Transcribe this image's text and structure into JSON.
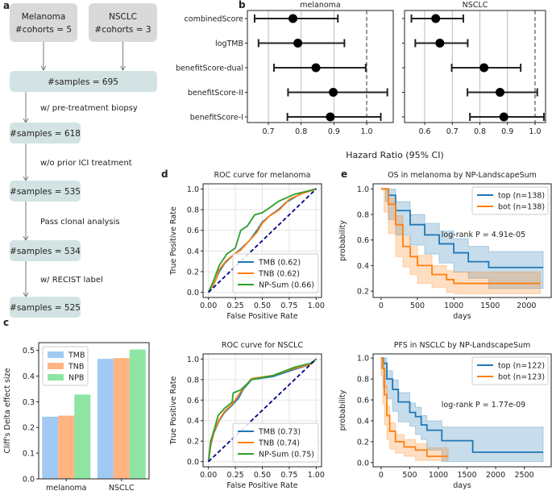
{
  "panel_labels": {
    "a": "a",
    "b": "b",
    "c": "c",
    "d": "d",
    "e": "e"
  },
  "flowchart": {
    "cohorts": [
      {
        "name": "Melanoma",
        "count": "#cohorts = 5"
      },
      {
        "name": "NSCLC",
        "count": "#cohorts = 3"
      }
    ],
    "steps": [
      "#samples = 695",
      "#samples = 618",
      "#samples = 535",
      "#samples = 534",
      "#samples = 525"
    ],
    "filters": [
      "w/ pre-treatment biopsy",
      "w/o prior ICI treatment",
      "Pass clonal analysis",
      "w/ RECIST label"
    ],
    "colors": {
      "cohort_box": "#d9d9d9",
      "step_box": "#d3e3e3"
    }
  },
  "forest_shared_xlabel": "Hazard Ratio (95% CI)",
  "chart_data": [
    {
      "id": "c",
      "type": "bar",
      "categories": [
        "melanoma",
        "NSCLC"
      ],
      "series": [
        {
          "name": "TMB",
          "values": [
            0.242,
            0.467
          ],
          "color": "#a1c9f4"
        },
        {
          "name": "TNB",
          "values": [
            0.246,
            0.47
          ],
          "color": "#ffb482"
        },
        {
          "name": "NPB",
          "values": [
            0.328,
            0.503
          ],
          "color": "#8de5a1"
        }
      ],
      "ylabel": "Cliff's Delta effect size",
      "ylim": [
        0,
        0.53
      ],
      "yticks": [
        "0.0",
        "0.1",
        "0.2",
        "0.3",
        "0.4",
        "0.5"
      ],
      "legend": "top-left"
    },
    {
      "id": "b-melanoma",
      "type": "forest",
      "title": "melanoma",
      "categories": [
        "combinedScore",
        "logTMB",
        "benefitScore-dual",
        "benefitScore-II",
        "benefitScore-I"
      ],
      "hr": [
        0.775,
        0.79,
        0.845,
        0.898,
        0.889
      ],
      "ci_low": [
        0.658,
        0.67,
        0.717,
        0.76,
        0.758
      ],
      "ci_high": [
        0.912,
        0.932,
        0.997,
        1.063,
        1.043
      ],
      "xlim": [
        0.636,
        1.081
      ],
      "xticks": [
        "0.7",
        "0.8",
        "0.9",
        "1.0"
      ],
      "reference_line": 1.0,
      "grid": true
    },
    {
      "id": "b-nsclc",
      "type": "forest",
      "title": "NSCLC",
      "categories": [
        "combinedScore",
        "logTMB",
        "benefitScore-dual",
        "benefitScore-II",
        "benefitScore-I"
      ],
      "hr": [
        0.64,
        0.655,
        0.815,
        0.873,
        0.887
      ],
      "ci_low": [
        0.552,
        0.566,
        0.698,
        0.755,
        0.764
      ],
      "ci_high": [
        0.74,
        0.756,
        0.948,
        1.008,
        1.032
      ],
      "xlim": [
        0.527,
        1.038
      ],
      "xticks": [
        "0.6",
        "0.7",
        "0.8",
        "0.9",
        "1.0"
      ],
      "reference_line": 1.0,
      "grid": true
    },
    {
      "id": "d-melanoma",
      "type": "line",
      "title": "ROC curve for melanoma",
      "xlabel": "False Positive Rate",
      "ylabel": "True Positive Rate",
      "xlim": [
        -0.05,
        1.05
      ],
      "ylim": [
        -0.05,
        1.05
      ],
      "xticks": [
        "0.00",
        "0.25",
        "0.50",
        "0.75",
        "1.00"
      ],
      "yticks": [
        "0.0",
        "0.2",
        "0.4",
        "0.6",
        "0.8",
        "1.0"
      ],
      "grid": true,
      "legend": "bottom-right",
      "series": [
        {
          "name": "TMB (0.62)",
          "color": "#1f77b4",
          "points": [
            [
              0,
              0
            ],
            [
              0.05,
              0.08
            ],
            [
              0.1,
              0.2
            ],
            [
              0.15,
              0.28
            ],
            [
              0.22,
              0.35
            ],
            [
              0.3,
              0.42
            ],
            [
              0.38,
              0.5
            ],
            [
              0.45,
              0.6
            ],
            [
              0.5,
              0.68
            ],
            [
              0.58,
              0.75
            ],
            [
              0.65,
              0.8
            ],
            [
              0.72,
              0.87
            ],
            [
              0.85,
              0.95
            ],
            [
              1,
              1
            ]
          ]
        },
        {
          "name": "TNB (0.62)",
          "color": "#ff7f0e",
          "points": [
            [
              0,
              0
            ],
            [
              0.06,
              0.1
            ],
            [
              0.1,
              0.22
            ],
            [
              0.16,
              0.3
            ],
            [
              0.24,
              0.37
            ],
            [
              0.3,
              0.41
            ],
            [
              0.37,
              0.49
            ],
            [
              0.45,
              0.58
            ],
            [
              0.5,
              0.67
            ],
            [
              0.57,
              0.74
            ],
            [
              0.66,
              0.8
            ],
            [
              0.75,
              0.9
            ],
            [
              0.88,
              0.96
            ],
            [
              1,
              1
            ]
          ]
        },
        {
          "name": "NP-Sum (0.66)",
          "color": "#2ca02c",
          "points": [
            [
              0,
              0
            ],
            [
              0.05,
              0.12
            ],
            [
              0.1,
              0.26
            ],
            [
              0.17,
              0.37
            ],
            [
              0.25,
              0.43
            ],
            [
              0.3,
              0.6
            ],
            [
              0.36,
              0.64
            ],
            [
              0.43,
              0.75
            ],
            [
              0.5,
              0.77
            ],
            [
              0.57,
              0.82
            ],
            [
              0.65,
              0.88
            ],
            [
              0.8,
              0.95
            ],
            [
              1,
              1
            ]
          ]
        }
      ],
      "reference": {
        "points": [
          [
            0,
            0
          ],
          [
            1,
            1
          ]
        ],
        "color": "#00008b",
        "style": "dashed"
      }
    },
    {
      "id": "d-nsclc",
      "type": "line",
      "title": "ROC curve for NSCLC",
      "xlabel": "False Positive Rate",
      "ylabel": "True Positive Rate",
      "xlim": [
        -0.05,
        1.05
      ],
      "ylim": [
        -0.05,
        1.05
      ],
      "xticks": [
        "0.00",
        "0.25",
        "0.50",
        "0.75",
        "1.00"
      ],
      "yticks": [
        "0.0",
        "0.2",
        "0.4",
        "0.6",
        "0.8",
        "1.0"
      ],
      "grid": true,
      "legend": "bottom-right",
      "series": [
        {
          "name": "TMB (0.73)",
          "color": "#1f77b4",
          "points": [
            [
              0,
              0
            ],
            [
              0.02,
              0.15
            ],
            [
              0.05,
              0.28
            ],
            [
              0.1,
              0.4
            ],
            [
              0.15,
              0.48
            ],
            [
              0.22,
              0.55
            ],
            [
              0.28,
              0.62
            ],
            [
              0.32,
              0.7
            ],
            [
              0.4,
              0.8
            ],
            [
              0.6,
              0.83
            ],
            [
              0.8,
              0.9
            ],
            [
              0.95,
              0.95
            ],
            [
              1,
              1
            ]
          ]
        },
        {
          "name": "TNB (0.74)",
          "color": "#ff7f0e",
          "points": [
            [
              0,
              0
            ],
            [
              0.02,
              0.16
            ],
            [
              0.05,
              0.29
            ],
            [
              0.1,
              0.41
            ],
            [
              0.15,
              0.49
            ],
            [
              0.22,
              0.56
            ],
            [
              0.28,
              0.65
            ],
            [
              0.32,
              0.71
            ],
            [
              0.4,
              0.81
            ],
            [
              0.6,
              0.84
            ],
            [
              0.8,
              0.91
            ],
            [
              0.95,
              0.95
            ],
            [
              1,
              1
            ]
          ]
        },
        {
          "name": "NP-Sum (0.75)",
          "color": "#2ca02c",
          "points": [
            [
              0,
              0
            ],
            [
              0.02,
              0.2
            ],
            [
              0.05,
              0.3
            ],
            [
              0.09,
              0.45
            ],
            [
              0.15,
              0.52
            ],
            [
              0.22,
              0.58
            ],
            [
              0.23,
              0.67
            ],
            [
              0.3,
              0.7
            ],
            [
              0.4,
              0.8
            ],
            [
              0.6,
              0.84
            ],
            [
              0.8,
              0.92
            ],
            [
              0.95,
              0.96
            ],
            [
              1,
              1
            ]
          ]
        }
      ],
      "reference": {
        "points": [
          [
            0,
            0
          ],
          [
            1,
            1
          ]
        ],
        "color": "#00008b",
        "style": "dashed"
      }
    },
    {
      "id": "e-os-melanoma",
      "type": "line",
      "title": "OS in melanoma by NP-LandscapeSum",
      "xlabel": "days",
      "ylabel": "probability",
      "xlim": [
        -110,
        2340
      ],
      "ylim": [
        0.15,
        1.04
      ],
      "xticks": [
        "0",
        "500",
        "1000",
        "1500",
        "2000"
      ],
      "yticks": [
        "0.2",
        "0.4",
        "0.6",
        "0.8",
        "1.0"
      ],
      "legend": "top-right",
      "annotation": "log-rank P = 4.91e-05",
      "series": [
        {
          "name": "top (n=138)",
          "color": "#1f77b4",
          "x": [
            0,
            60,
            100,
            200,
            400,
            600,
            800,
            1000,
            1200,
            1480,
            2230
          ],
          "y": [
            1,
            1,
            0.95,
            0.83,
            0.72,
            0.64,
            0.57,
            0.5,
            0.43,
            0.385,
            0.385
          ],
          "ci_high": [
            1,
            1,
            1,
            0.9,
            0.8,
            0.73,
            0.67,
            0.61,
            0.55,
            0.51,
            0.51
          ],
          "ci_low": [
            1,
            1,
            0.9,
            0.76,
            0.64,
            0.56,
            0.49,
            0.42,
            0.35,
            0.3,
            0.22
          ]
        },
        {
          "name": "bot (n=138)",
          "color": "#ff7f0e",
          "x": [
            0,
            40,
            100,
            200,
            300,
            400,
            500,
            700,
            900,
            1000,
            2190
          ],
          "y": [
            1,
            1,
            0.88,
            0.72,
            0.55,
            0.47,
            0.4,
            0.33,
            0.29,
            0.26,
            0.26
          ],
          "ci_high": [
            1,
            1,
            0.93,
            0.79,
            0.63,
            0.55,
            0.48,
            0.4,
            0.36,
            0.35,
            0.35
          ],
          "ci_low": [
            1,
            1,
            0.82,
            0.65,
            0.47,
            0.39,
            0.33,
            0.26,
            0.23,
            0.19,
            0.18
          ]
        }
      ]
    },
    {
      "id": "e-pfs-nsclc",
      "type": "line",
      "title": "PFS in NSCLC by NP-LandscapeSum",
      "xlabel": "days",
      "ylabel": "probability",
      "xlim": [
        -140,
        2970
      ],
      "ylim": [
        -0.04,
        1.04
      ],
      "xticks": [
        "0",
        "500",
        "1000",
        "1500",
        "2000",
        "2500"
      ],
      "yticks": [
        "0.0",
        "0.2",
        "0.4",
        "0.6",
        "0.8",
        "1.0"
      ],
      "legend": "top-right",
      "annotation": "log-rank P = 1.77e-09",
      "series": [
        {
          "name": "top (n=122)",
          "color": "#1f77b4",
          "x": [
            0,
            40,
            100,
            200,
            300,
            500,
            600,
            700,
            800,
            1060,
            1600,
            2830
          ],
          "y": [
            1,
            0.95,
            0.8,
            0.7,
            0.58,
            0.48,
            0.44,
            0.36,
            0.31,
            0.21,
            0.1,
            0.1
          ],
          "ci_high": [
            1,
            1,
            0.88,
            0.79,
            0.67,
            0.57,
            0.53,
            0.45,
            0.4,
            0.34,
            0.34,
            0.34
          ],
          "ci_low": [
            1,
            0.9,
            0.72,
            0.61,
            0.49,
            0.39,
            0.35,
            0.27,
            0.22,
            0.12,
            0.01,
            0.01
          ]
        },
        {
          "name": "bot (n=123)",
          "color": "#ff7f0e",
          "x": [
            0,
            30,
            60,
            100,
            150,
            250,
            400,
            600,
            800,
            1170
          ],
          "y": [
            1,
            0.9,
            0.65,
            0.45,
            0.3,
            0.2,
            0.15,
            0.12,
            0.06,
            0.06
          ],
          "ci_high": [
            1,
            0.96,
            0.74,
            0.54,
            0.38,
            0.27,
            0.22,
            0.18,
            0.14,
            0.14
          ],
          "ci_low": [
            1,
            0.83,
            0.56,
            0.36,
            0.22,
            0.13,
            0.09,
            0.06,
            0.02,
            0.02
          ]
        }
      ]
    }
  ]
}
